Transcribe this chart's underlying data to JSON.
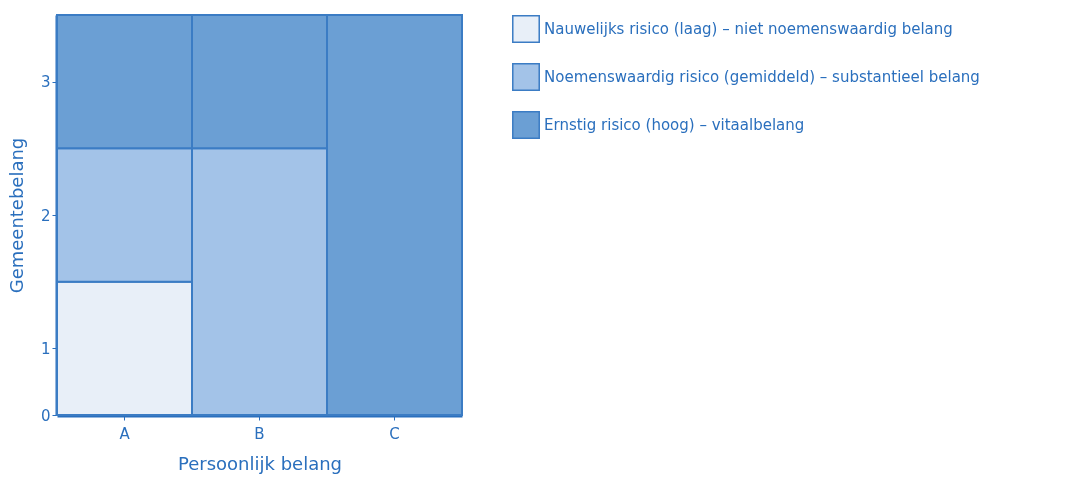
{
  "chart_data": {
    "type": "bar",
    "stacked": true,
    "xlabel": "Persoonlijk belang",
    "ylabel": "Gemeentebelang",
    "categories": [
      "A",
      "B",
      "C"
    ],
    "series": [
      {
        "name": "Nauwelijks risico (laag) – niet noemenswaardig belang",
        "color": "#e8eff8",
        "values": [
          1,
          0,
          0
        ]
      },
      {
        "name": "Noemenswaardig risico (gemiddeld) – substantieel belang",
        "color": "#a3c3e8",
        "values": [
          1,
          2,
          0
        ]
      },
      {
        "name": "Ernstig risico (hoog) – vitaalbelang",
        "color": "#6b9fd4",
        "values": [
          1,
          1,
          3
        ]
      }
    ],
    "ylim": [
      0,
      3
    ],
    "yticks": [
      0,
      {
        "value": 0.5,
        "label": "1"
      },
      {
        "value": 1.5,
        "label": "2"
      },
      {
        "value": 2.5,
        "label": "3"
      }
    ],
    "legend": "right"
  }
}
